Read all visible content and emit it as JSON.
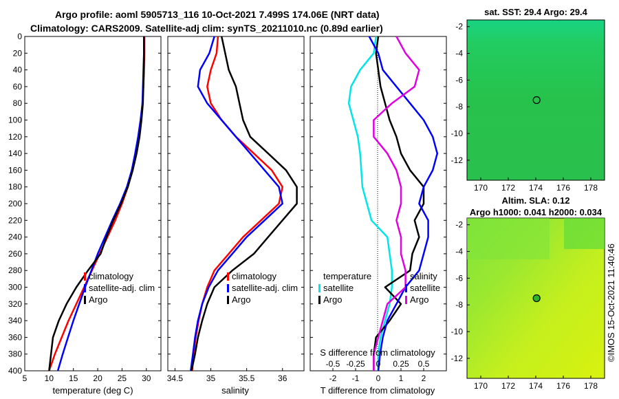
{
  "figure": {
    "title_line1": "Argo profile: aoml 5905713_116 10-Oct-2021 7.499S 174.06E (NRT data)",
    "title_line2": "Climatology: CARS2009. Satellite-adj clim: synTS_20211010.nc (0.89d earlier)",
    "timestamp": "©IMOS 15-Oct-2021 11:40:46",
    "colors": {
      "climatology": "#ff0000",
      "satellite": "#0000ff",
      "argo": "#000000",
      "temp_diff": "#00e5e5",
      "sal_diff": "#e000e0"
    }
  },
  "chart_data": [
    {
      "type": "line",
      "id": "temperature",
      "xlabel": "temperature (deg C)",
      "ylabel": "",
      "xlim": [
        5,
        33
      ],
      "ylim": [
        0,
        400
      ],
      "xticks": [
        "5",
        "10",
        "15",
        "20",
        "25",
        "30"
      ],
      "yticks": [
        "0",
        "20",
        "40",
        "60",
        "80",
        "100",
        "120",
        "140",
        "160",
        "180",
        "200",
        "220",
        "240",
        "260",
        "280",
        "300",
        "320",
        "340",
        "360",
        "380",
        "400"
      ],
      "legend": [
        "climatology",
        "satellite-adj. clim",
        "Argo"
      ],
      "series": [
        {
          "name": "climatology",
          "color": "#ff0000",
          "x": [
            29.6,
            29.6,
            29.5,
            29.4,
            29.2,
            28.9,
            28.5,
            27.9,
            27.1,
            26.2,
            25.0,
            23.6,
            22.0,
            20.4,
            18.8,
            17.2,
            15.6,
            14.0,
            12.6,
            11.2,
            10.0
          ],
          "y": [
            0,
            20,
            40,
            60,
            80,
            100,
            120,
            140,
            160,
            180,
            200,
            220,
            240,
            260,
            280,
            300,
            320,
            340,
            360,
            380,
            400
          ]
        },
        {
          "name": "satellite-adj. clim",
          "color": "#0000ff",
          "x": [
            29.5,
            29.5,
            29.4,
            29.3,
            29.2,
            28.8,
            28.3,
            27.7,
            27.0,
            26.0,
            24.6,
            23.0,
            21.5,
            20.0,
            18.7,
            17.4,
            16.2,
            15.0,
            13.9,
            12.8,
            11.8
          ],
          "y": [
            0,
            20,
            40,
            60,
            80,
            100,
            120,
            140,
            160,
            180,
            200,
            220,
            240,
            260,
            280,
            300,
            320,
            340,
            360,
            380,
            400
          ]
        },
        {
          "name": "Argo",
          "color": "#000000",
          "x": [
            29.5,
            29.5,
            29.5,
            29.4,
            29.3,
            29.0,
            28.6,
            28.0,
            27.2,
            26.2,
            24.8,
            23.2,
            21.8,
            20.6,
            18.0,
            15.6,
            13.6,
            12.0,
            10.8,
            10.4,
            10.0
          ],
          "y": [
            0,
            20,
            40,
            60,
            80,
            100,
            120,
            140,
            160,
            180,
            200,
            220,
            240,
            260,
            280,
            300,
            320,
            340,
            360,
            380,
            400
          ]
        }
      ]
    },
    {
      "type": "line",
      "id": "salinity",
      "xlabel": "salinity",
      "ylabel": "",
      "xlim": [
        34.4,
        36.3
      ],
      "ylim": [
        0,
        400
      ],
      "xticks": [
        "34.5",
        "35",
        "35.5",
        "36"
      ],
      "legend": [
        "climatology",
        "satellite-adj. clim",
        "Argo"
      ],
      "series": [
        {
          "name": "climatology",
          "color": "#ff0000",
          "x": [
            35.1,
            35.08,
            35.0,
            34.95,
            35.0,
            35.15,
            35.35,
            35.6,
            35.85,
            36.0,
            35.95,
            35.7,
            35.45,
            35.25,
            35.05,
            34.95,
            34.88,
            34.83,
            34.79,
            34.76,
            34.74
          ],
          "y": [
            0,
            20,
            40,
            60,
            80,
            100,
            120,
            140,
            160,
            180,
            200,
            220,
            240,
            260,
            280,
            300,
            320,
            340,
            360,
            380,
            400
          ]
        },
        {
          "name": "satellite-adj. clim",
          "color": "#0000ff",
          "x": [
            35.05,
            34.98,
            34.85,
            34.82,
            34.95,
            35.15,
            35.35,
            35.55,
            35.75,
            35.95,
            36.0,
            35.75,
            35.5,
            35.3,
            35.1,
            34.97,
            34.88,
            34.82,
            34.78,
            34.75,
            34.72
          ],
          "y": [
            0,
            20,
            40,
            60,
            80,
            100,
            120,
            140,
            160,
            180,
            200,
            220,
            240,
            260,
            280,
            300,
            320,
            340,
            360,
            380,
            400
          ]
        },
        {
          "name": "Argo",
          "color": "#000000",
          "x": [
            35.15,
            35.2,
            35.25,
            35.35,
            35.4,
            35.45,
            35.55,
            35.8,
            36.05,
            36.2,
            36.2,
            36.0,
            35.8,
            35.6,
            35.3,
            35.05,
            34.95,
            34.88,
            34.82,
            34.78,
            34.73
          ],
          "y": [
            0,
            20,
            40,
            60,
            80,
            100,
            120,
            140,
            160,
            180,
            200,
            220,
            240,
            260,
            280,
            300,
            320,
            340,
            360,
            380,
            400
          ]
        }
      ]
    },
    {
      "type": "line",
      "id": "difference",
      "xlabel": "T difference from climatology",
      "xlabel_top": "S difference from climatology",
      "xlim": [
        -3,
        3
      ],
      "ylim": [
        0,
        400
      ],
      "xticks": [
        "-2",
        "-1",
        "0",
        "1",
        "2"
      ],
      "xticks_s": [
        "-0.5",
        "-0.25",
        "0",
        "0.25",
        "0.5"
      ],
      "legend_left_title": "temperature",
      "legend_right_title": "salinity",
      "legend_left": [
        "satellite",
        "Argo"
      ],
      "legend_right": [
        "satellite",
        "Argo"
      ],
      "series": [
        {
          "name": "temperature satellite",
          "color": "#00e5e5",
          "x": [
            -0.1,
            -0.2,
            -0.8,
            -1.2,
            -1.3,
            -1.1,
            -0.9,
            -0.8,
            -0.75,
            -0.7,
            -0.5,
            -0.3,
            0.4,
            0.5,
            0.6,
            0.6,
            0.5,
            0.3,
            0.1,
            0.0,
            0.0
          ],
          "y": [
            0,
            20,
            40,
            60,
            80,
            100,
            120,
            140,
            160,
            180,
            200,
            220,
            240,
            260,
            280,
            300,
            320,
            340,
            360,
            380,
            400
          ]
        },
        {
          "name": "temperature Argo",
          "color": "#000000",
          "x": [
            0.0,
            -0.1,
            0.0,
            0.1,
            0.3,
            0.5,
            0.8,
            1.0,
            1.4,
            2.0,
            2.0,
            1.6,
            1.8,
            1.5,
            1.4,
            0.3,
            1.0,
            0.5,
            -0.1,
            -0.2,
            -0.2
          ],
          "y": [
            0,
            20,
            40,
            60,
            80,
            100,
            120,
            140,
            160,
            180,
            200,
            220,
            240,
            260,
            280,
            300,
            320,
            340,
            360,
            380,
            400
          ]
        },
        {
          "name": "salinity satellite",
          "color": "#0000ff",
          "x": [
            -0.1,
            0.0,
            0.05,
            0.2,
            0.35,
            0.5,
            0.6,
            0.65,
            0.6,
            0.5,
            0.45,
            0.55,
            0.55,
            0.5,
            0.45,
            0.3,
            0.2,
            0.1,
            0.05,
            0.02,
            0.0
          ],
          "y": [
            0,
            20,
            40,
            60,
            80,
            100,
            120,
            140,
            160,
            180,
            200,
            220,
            240,
            260,
            280,
            300,
            320,
            340,
            360,
            380,
            400
          ]
        },
        {
          "name": "salinity Argo",
          "color": "#e000e0",
          "x": [
            0.2,
            0.3,
            0.45,
            0.4,
            0.15,
            -0.05,
            -0.05,
            0.1,
            0.2,
            0.25,
            0.25,
            0.2,
            0.25,
            0.25,
            0.3,
            0.3,
            0.1,
            0.05,
            0.0,
            -0.05,
            -0.05
          ],
          "y": [
            0,
            20,
            40,
            60,
            80,
            100,
            120,
            140,
            160,
            180,
            200,
            220,
            240,
            260,
            280,
            300,
            320,
            340,
            360,
            380,
            400
          ]
        }
      ]
    },
    {
      "type": "heatmap",
      "id": "sst_map",
      "title": "sat. SST: 29.4  Argo: 29.4",
      "xlim": [
        169,
        179
      ],
      "ylim": [
        -13.5,
        -1.5
      ],
      "xticks": [
        "170",
        "172",
        "174",
        "176",
        "178"
      ],
      "yticks": [
        "-2",
        "-4",
        "-6",
        "-8",
        "-10",
        "-12"
      ],
      "marker": {
        "lon": 174.06,
        "lat": -7.499
      }
    },
    {
      "type": "heatmap",
      "id": "sla_map",
      "title": "Altim. SLA: 0.12",
      "subtitle": "Argo h1000: 0.041 h2000: 0.034",
      "xlim": [
        169,
        179
      ],
      "ylim": [
        -13.5,
        -1.5
      ],
      "xticks": [
        "170",
        "172",
        "174",
        "176",
        "178"
      ],
      "yticks": [
        "-2",
        "-4",
        "-6",
        "-8",
        "-10",
        "-12"
      ],
      "marker": {
        "lon": 174.06,
        "lat": -7.499
      }
    }
  ]
}
